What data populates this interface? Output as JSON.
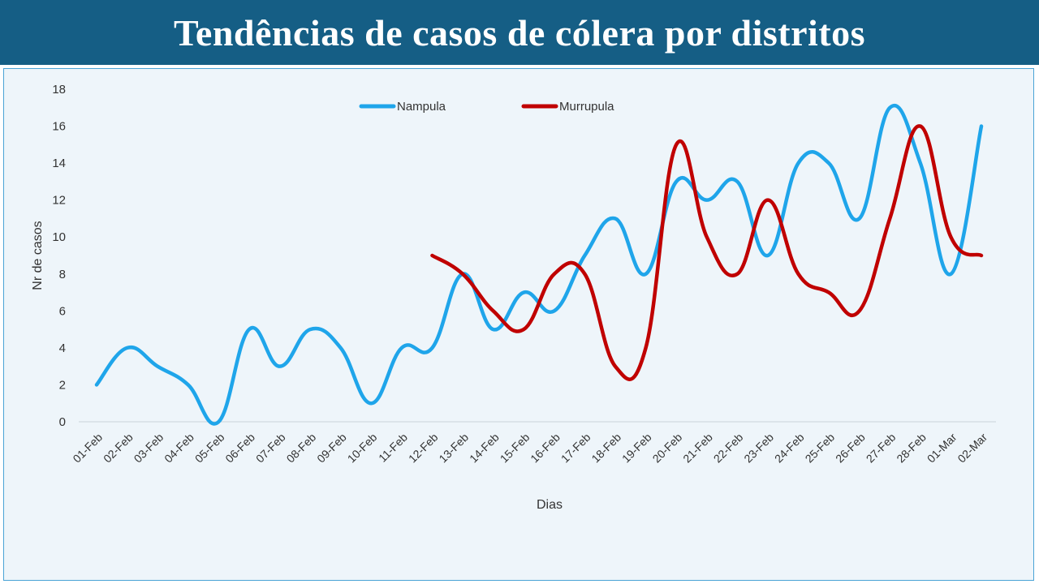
{
  "title": "Tendências de casos de cólera por distritos",
  "chart_data": {
    "type": "line",
    "smooth": true,
    "categories": [
      "01-Feb",
      "02-Feb",
      "03-Feb",
      "04-Feb",
      "05-Feb",
      "06-Feb",
      "07-Feb",
      "08-Feb",
      "09-Feb",
      "10-Feb",
      "11-Feb",
      "12-Feb",
      "13-Feb",
      "14-Feb",
      "15-Feb",
      "16-Feb",
      "17-Feb",
      "18-Feb",
      "19-Feb",
      "20-Feb",
      "21-Feb",
      "22-Feb",
      "23-Feb",
      "24-Feb",
      "25-Feb",
      "26-Feb",
      "27-Feb",
      "28-Feb",
      "01-Mar",
      "02-Mar"
    ],
    "series": [
      {
        "name": "Nampula",
        "color": "#1fa5ea",
        "values": [
          2,
          4,
          3,
          2,
          0,
          5,
          3,
          5,
          4,
          1,
          4,
          4,
          8,
          5,
          7,
          6,
          9,
          11,
          8,
          13,
          12,
          13,
          9,
          14,
          14,
          11,
          17,
          14,
          8,
          16
        ]
      },
      {
        "name": "Murrupula",
        "color": "#c00000",
        "values": [
          null,
          null,
          null,
          null,
          null,
          null,
          null,
          null,
          null,
          null,
          null,
          9,
          8,
          6,
          5,
          8,
          8,
          3,
          4,
          15,
          10,
          8,
          12,
          8,
          7,
          6,
          11,
          16,
          10,
          9
        ]
      }
    ],
    "xlabel": "Dias",
    "ylabel": "Nr de casos",
    "ylim": [
      0,
      18
    ],
    "yticks": [
      0,
      2,
      4,
      6,
      8,
      10,
      12,
      14,
      16,
      18
    ],
    "grid": false,
    "legend": "top-center"
  }
}
